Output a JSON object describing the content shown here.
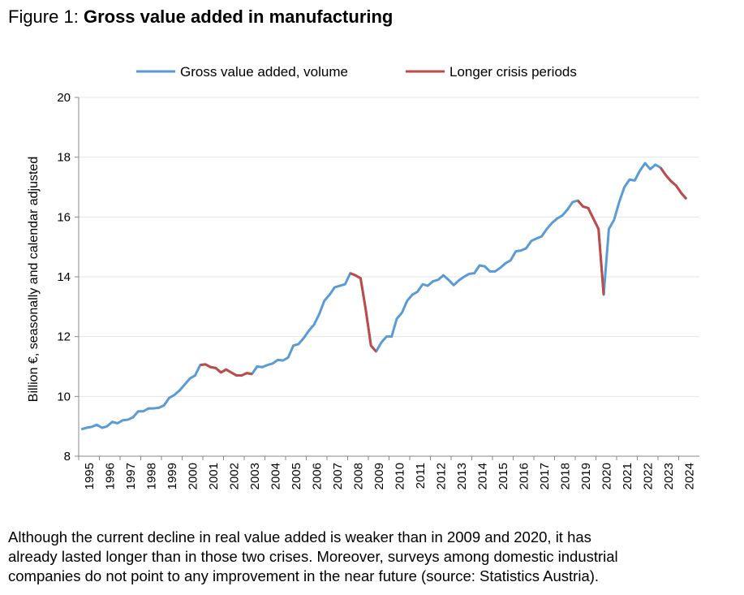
{
  "chart_data": {
    "type": "line",
    "figure_label": "Figure 1:",
    "title": "Gross value added in manufacturing",
    "ylabel": "Billion €, seasonally and calendar adjusted",
    "caption": [
      "Although the current decline in real value added is weaker than in 2009 and 2020, it has",
      "already lasted longer than in those two crises. Moreover, surveys among domestic industrial",
      "companies do not point to any improvement in the near future (source: Statistics Austria)."
    ],
    "legend": "top",
    "grid": true,
    "ylim": [
      8,
      20
    ],
    "yticks": [
      8,
      10,
      12,
      14,
      16,
      18,
      20
    ],
    "categories": [
      "1995",
      null,
      null,
      null,
      "1996",
      null,
      null,
      null,
      "1997",
      null,
      null,
      null,
      "1998",
      null,
      null,
      null,
      "1999",
      null,
      null,
      null,
      "2000",
      null,
      null,
      null,
      "2001",
      null,
      null,
      null,
      "2002",
      null,
      null,
      null,
      "2003",
      null,
      null,
      null,
      "2004",
      null,
      null,
      null,
      "2005",
      null,
      null,
      null,
      "2006",
      null,
      null,
      null,
      "2007",
      null,
      null,
      null,
      "2008",
      null,
      null,
      null,
      "2009",
      null,
      null,
      null,
      "2010",
      null,
      null,
      null,
      "2011",
      null,
      null,
      null,
      "2012",
      null,
      null,
      null,
      "2013",
      null,
      null,
      null,
      "2014",
      null,
      null,
      null,
      "2015",
      null,
      null,
      null,
      "2016",
      null,
      null,
      null,
      "2017",
      null,
      null,
      null,
      "2018",
      null,
      null,
      null,
      "2019",
      null,
      null,
      null,
      "2020",
      null,
      null,
      null,
      "2021",
      null,
      null,
      null,
      "2022",
      null,
      null,
      null,
      "2023",
      null,
      null,
      null,
      "2024",
      null
    ],
    "series": [
      {
        "name": "Gross value added, volume",
        "color": "#5b9bd5",
        "values": [
          8.9,
          8.95,
          8.98,
          9.05,
          8.95,
          9.0,
          9.15,
          9.1,
          9.2,
          9.22,
          9.3,
          9.5,
          9.5,
          9.6,
          9.6,
          9.62,
          9.7,
          9.95,
          10.05,
          10.2,
          10.4,
          10.6,
          10.7,
          11.05,
          11.07,
          10.98,
          10.95,
          10.8,
          10.9,
          10.8,
          10.7,
          10.7,
          10.78,
          10.75,
          11.0,
          10.98,
          11.05,
          11.1,
          11.22,
          11.2,
          11.3,
          11.7,
          11.75,
          11.95,
          12.2,
          12.4,
          12.75,
          13.2,
          13.4,
          13.65,
          13.7,
          13.75,
          14.12,
          14.05,
          13.95,
          12.9,
          11.7,
          11.5,
          11.8,
          12.0,
          12.0,
          12.6,
          12.8,
          13.2,
          13.4,
          13.5,
          13.75,
          13.7,
          13.85,
          13.9,
          14.05,
          13.9,
          13.72,
          13.88,
          14.0,
          14.1,
          14.12,
          14.38,
          14.35,
          14.18,
          14.18,
          14.3,
          14.45,
          14.55,
          14.85,
          14.88,
          14.95,
          15.2,
          15.28,
          15.35,
          15.6,
          15.8,
          15.95,
          16.05,
          16.25,
          16.5,
          16.55,
          16.35,
          16.3,
          15.95,
          15.6,
          13.4,
          15.6,
          15.9,
          16.5,
          17.0,
          17.25,
          17.22,
          17.55,
          17.8,
          17.6,
          17.75,
          17.65,
          17.4,
          17.2,
          17.05,
          16.8,
          16.6
        ]
      },
      {
        "name": "Longer crisis periods",
        "color": "#be4b48",
        "values": [
          null,
          null,
          null,
          null,
          null,
          null,
          null,
          null,
          null,
          null,
          null,
          null,
          null,
          null,
          null,
          null,
          null,
          null,
          null,
          null,
          null,
          null,
          null,
          11.05,
          11.07,
          10.98,
          10.95,
          10.8,
          10.9,
          10.8,
          10.7,
          10.7,
          10.78,
          10.75,
          null,
          null,
          null,
          null,
          null,
          null,
          null,
          null,
          null,
          null,
          null,
          null,
          null,
          null,
          null,
          null,
          null,
          null,
          14.12,
          14.05,
          13.95,
          12.9,
          11.7,
          11.5,
          null,
          null,
          null,
          null,
          null,
          null,
          null,
          null,
          null,
          null,
          null,
          null,
          null,
          null,
          null,
          null,
          null,
          null,
          null,
          null,
          null,
          null,
          null,
          null,
          null,
          null,
          null,
          null,
          null,
          null,
          null,
          null,
          null,
          null,
          null,
          null,
          null,
          null,
          16.55,
          16.35,
          16.3,
          15.95,
          15.6,
          13.4,
          null,
          null,
          null,
          null,
          null,
          null,
          null,
          null,
          null,
          null,
          17.65,
          17.4,
          17.2,
          17.05,
          16.8,
          16.6
        ]
      }
    ]
  }
}
